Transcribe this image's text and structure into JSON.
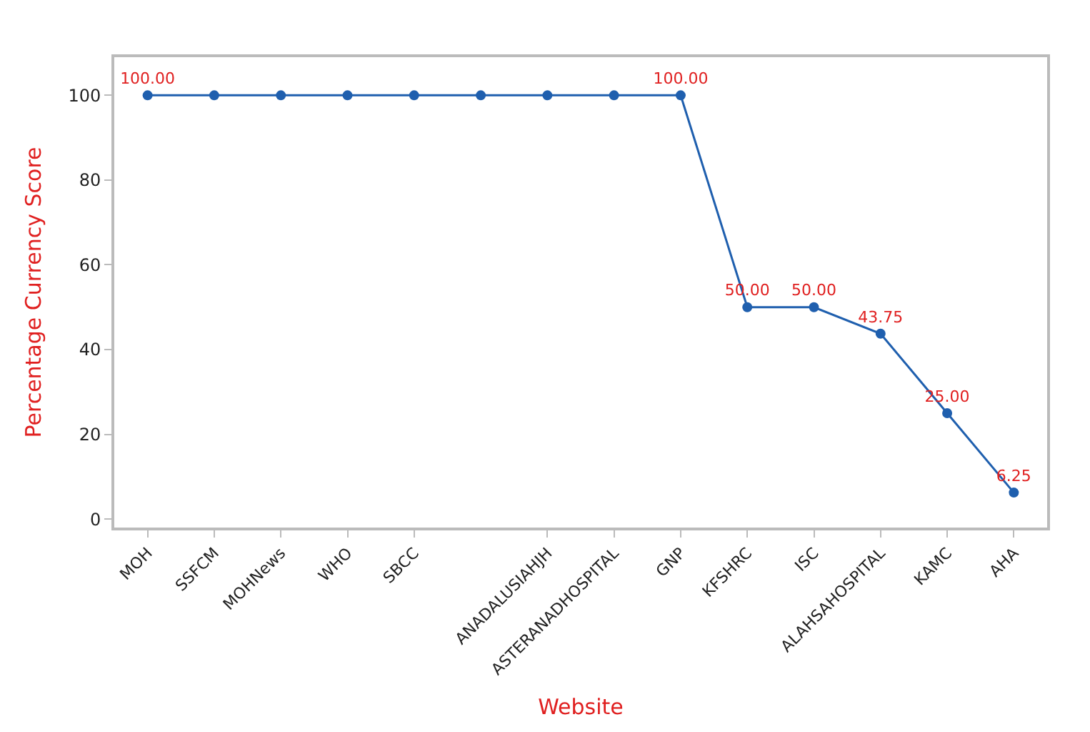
{
  "chart_data": {
    "type": "line",
    "xlabel": "Website",
    "ylabel": "Percentage Currency Score",
    "categories": [
      "MOH",
      "SSFCM",
      "MOHNews",
      "WHO",
      "SBCC",
      null,
      "ANADALUSIAHJH",
      "ASTERANADHOSPITAL",
      "GNP",
      "KFSHRC",
      "ISC",
      "ALAHSAHOSPITAL",
      "KAMC",
      "AHA"
    ],
    "series": [
      {
        "color": "#1f5fae",
        "values": [
          100,
          100,
          100,
          100,
          100,
          100,
          100,
          100,
          100,
          50,
          50,
          43.75,
          25,
          6.25
        ],
        "value_labels": [
          "100.00",
          null,
          null,
          null,
          null,
          null,
          null,
          null,
          "100.00",
          "50.00",
          "50.00",
          "43.75",
          "25.00",
          "6.25"
        ]
      }
    ],
    "ylim": [
      -2,
      109
    ],
    "yticks": [
      0,
      20,
      40,
      60,
      80,
      100
    ],
    "grid": false,
    "legend": false,
    "marker": "circle",
    "line_style": "solid"
  }
}
